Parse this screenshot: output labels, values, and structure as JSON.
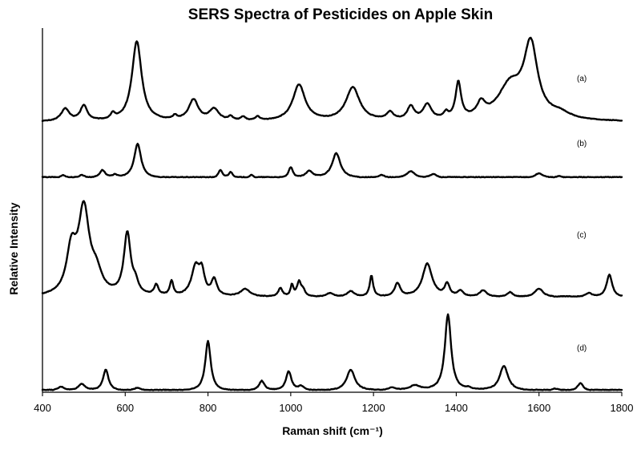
{
  "chart_data": {
    "type": "line",
    "title": "SERS Spectra of Pesticides on Apple Skin",
    "xlabel": "Raman shift (cm⁻¹)",
    "ylabel": "Relative Intensity",
    "xlim": [
      400,
      1800
    ],
    "xticks": [
      400,
      600,
      800,
      1000,
      1200,
      1400,
      1600,
      1800
    ],
    "yaxis_ticks_shown": false,
    "grid": false,
    "legend": "none",
    "line_color": "#000000",
    "layout": "vertically offset stacked traces, arbitrary intensity units",
    "series": [
      {
        "name": "(a)",
        "offset": 2.82,
        "baseline": 0.0,
        "peaks": [
          [
            455,
            0.13,
            12
          ],
          [
            500,
            0.16,
            10
          ],
          [
            570,
            0.06,
            6
          ],
          [
            628,
            0.84,
            14
          ],
          [
            720,
            0.04,
            6
          ],
          [
            765,
            0.22,
            14
          ],
          [
            815,
            0.12,
            14
          ],
          [
            855,
            0.04,
            6
          ],
          [
            885,
            0.04,
            6
          ],
          [
            920,
            0.04,
            6
          ],
          [
            1020,
            0.38,
            18
          ],
          [
            1150,
            0.35,
            20
          ],
          [
            1240,
            0.08,
            10
          ],
          [
            1290,
            0.14,
            10
          ],
          [
            1330,
            0.16,
            12
          ],
          [
            1375,
            0.06,
            6
          ],
          [
            1405,
            0.38,
            8
          ],
          [
            1460,
            0.14,
            12
          ],
          [
            1530,
            0.35,
            36
          ],
          [
            1580,
            0.75,
            20
          ],
          [
            1650,
            0.06,
            30
          ]
        ]
      },
      {
        "name": "(b)",
        "offset": 2.23,
        "baseline": 0.0,
        "peaks": [
          [
            450,
            0.03,
            8
          ],
          [
            495,
            0.03,
            8
          ],
          [
            545,
            0.08,
            8
          ],
          [
            575,
            0.03,
            6
          ],
          [
            630,
            0.36,
            10
          ],
          [
            830,
            0.08,
            6
          ],
          [
            855,
            0.06,
            6
          ],
          [
            905,
            0.03,
            6
          ],
          [
            1000,
            0.11,
            6
          ],
          [
            1045,
            0.07,
            10
          ],
          [
            1110,
            0.26,
            12
          ],
          [
            1220,
            0.03,
            8
          ],
          [
            1290,
            0.07,
            12
          ],
          [
            1345,
            0.04,
            10
          ],
          [
            1600,
            0.05,
            12
          ],
          [
            1650,
            0.02,
            10
          ]
        ]
      },
      {
        "name": "(c)",
        "offset": 0.98,
        "baseline": 0.0,
        "peaks": [
          [
            470,
            0.45,
            14
          ],
          [
            500,
            0.88,
            16
          ],
          [
            530,
            0.2,
            16
          ],
          [
            605,
            0.65,
            10
          ],
          [
            625,
            0.1,
            8
          ],
          [
            675,
            0.11,
            6
          ],
          [
            712,
            0.15,
            5
          ],
          [
            770,
            0.3,
            12
          ],
          [
            785,
            0.22,
            8
          ],
          [
            815,
            0.17,
            8
          ],
          [
            890,
            0.08,
            14
          ],
          [
            975,
            0.09,
            6
          ],
          [
            1003,
            0.12,
            4
          ],
          [
            1020,
            0.15,
            6
          ],
          [
            1030,
            0.06,
            6
          ],
          [
            1095,
            0.04,
            10
          ],
          [
            1145,
            0.06,
            10
          ],
          [
            1195,
            0.22,
            5
          ],
          [
            1258,
            0.14,
            8
          ],
          [
            1330,
            0.35,
            14
          ],
          [
            1378,
            0.13,
            7
          ],
          [
            1410,
            0.06,
            8
          ],
          [
            1465,
            0.07,
            10
          ],
          [
            1530,
            0.05,
            8
          ],
          [
            1600,
            0.09,
            12
          ],
          [
            1720,
            0.04,
            10
          ],
          [
            1770,
            0.24,
            8
          ]
        ]
      },
      {
        "name": "(d)",
        "offset": 0.0,
        "baseline": 0.0,
        "peaks": [
          [
            445,
            0.04,
            10
          ],
          [
            495,
            0.07,
            10
          ],
          [
            553,
            0.22,
            8
          ],
          [
            630,
            0.03,
            10
          ],
          [
            800,
            0.52,
            8
          ],
          [
            930,
            0.1,
            8
          ],
          [
            995,
            0.2,
            8
          ],
          [
            1025,
            0.04,
            8
          ],
          [
            1145,
            0.22,
            12
          ],
          [
            1245,
            0.03,
            10
          ],
          [
            1300,
            0.05,
            15
          ],
          [
            1380,
            0.8,
            9
          ],
          [
            1430,
            0.02,
            6
          ],
          [
            1515,
            0.26,
            12
          ],
          [
            1640,
            0.02,
            10
          ],
          [
            1700,
            0.08,
            8
          ]
        ]
      }
    ]
  }
}
